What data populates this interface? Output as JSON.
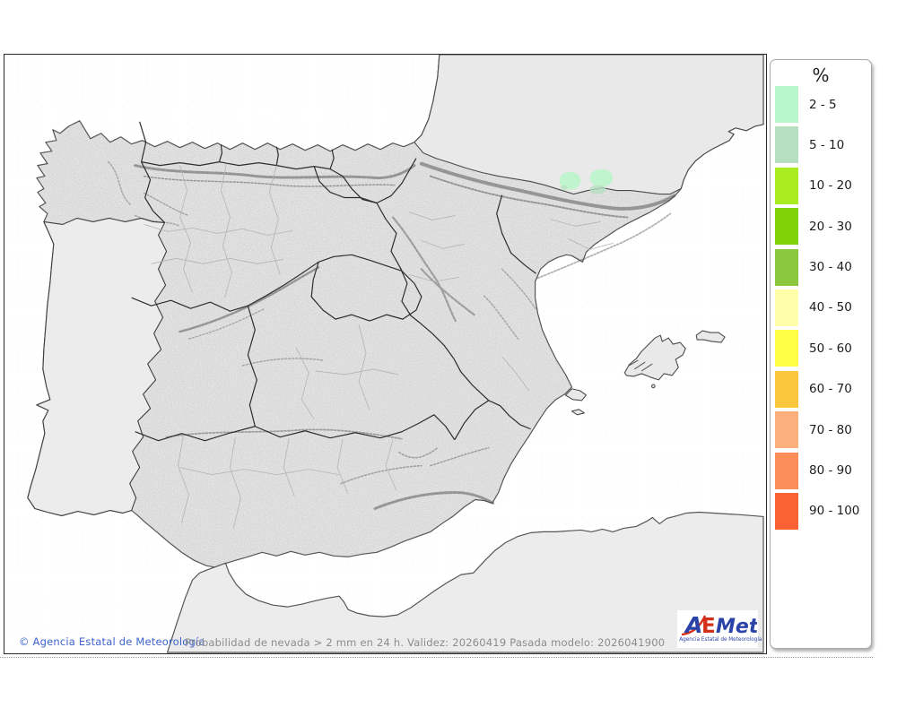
{
  "map": {
    "attribution": "© Agencia Estatal de Meteorología",
    "footer_text": "Probabilidad de nevada > 2 mm en 24 h. Validez: 20260419 Pasada modelo: 2026041900",
    "sea_color": "#ffffff",
    "land_color": "#e9e9e9",
    "overlays": [
      {
        "range": "2 - 5",
        "color": "#b9f6c9",
        "location": "western Pyrenees patch"
      },
      {
        "range": "2 - 5",
        "color": "#b9f6c9",
        "location": "central Pyrenees patch"
      },
      {
        "range": "5 - 10",
        "color": "#b6dfc1",
        "location": "small patch on south edge of central Pyrenees blob"
      }
    ]
  },
  "legend": {
    "title": "%",
    "items": [
      {
        "label": "2 - 5",
        "color": "#b9f6c9"
      },
      {
        "label": "5 - 10",
        "color": "#b6dfc1"
      },
      {
        "label": "10 - 20",
        "color": "#a9ec20"
      },
      {
        "label": "20 - 30",
        "color": "#80d306"
      },
      {
        "label": "30 - 40",
        "color": "#8bc83e"
      },
      {
        "label": "40 - 50",
        "color": "#ffffaa"
      },
      {
        "label": "50 - 60",
        "color": "#ffff45"
      },
      {
        "label": "60 - 70",
        "color": "#fdc73d"
      },
      {
        "label": "70 - 80",
        "color": "#fcae7d"
      },
      {
        "label": "80 - 90",
        "color": "#fb8d5b"
      },
      {
        "label": "90 - 100",
        "color": "#fa6234"
      }
    ]
  },
  "logo": {
    "part_a": "A",
    "part_e": "E",
    "part_met": "Met",
    "tagline": "Agencia Estatal de Meteorología"
  }
}
